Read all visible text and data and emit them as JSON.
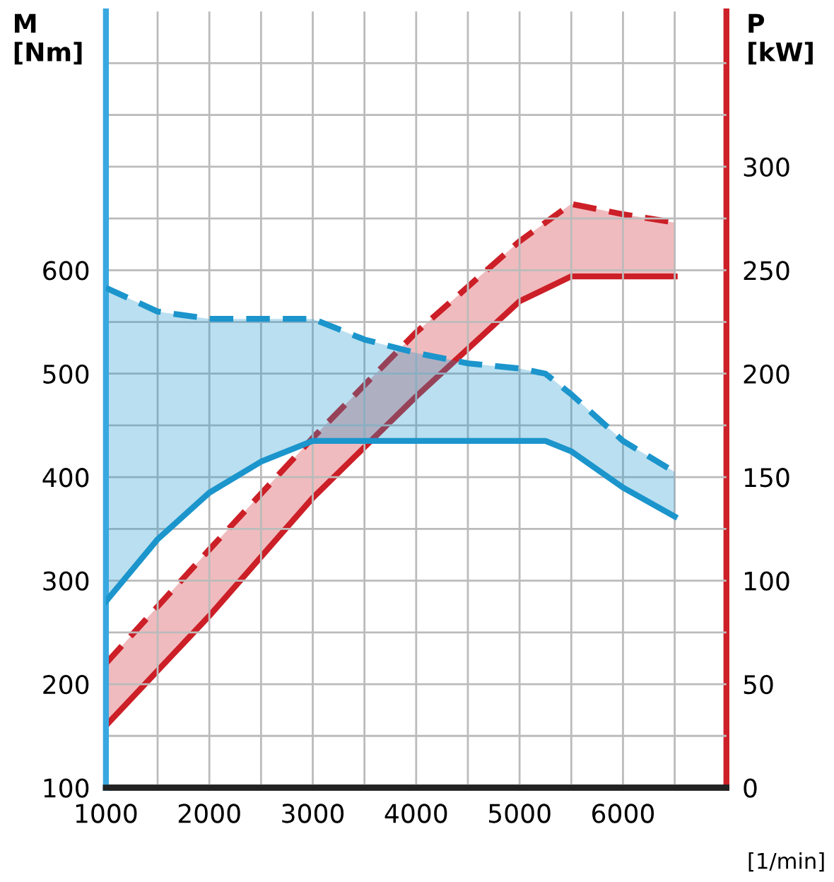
{
  "chart_data": {
    "type": "line",
    "ylabel": "M\n[Nm]",
    "y2label": "P\n[kW]",
    "xlabel": "[1/min]",
    "xlim": [
      1000,
      7000
    ],
    "xticks": [
      1000,
      {
        "value": 1500,
        "label": null
      },
      2000,
      {
        "value": 2500,
        "label": null
      },
      3000,
      {
        "value": 3500,
        "label": null
      },
      4000,
      {
        "value": 4500,
        "label": null
      },
      5000,
      {
        "value": 5500,
        "label": null
      },
      6000,
      {
        "value": 6500,
        "label": null
      }
    ],
    "ylim": [
      100,
      850
    ],
    "yticks": [
      100,
      {
        "value": 150,
        "label": null
      },
      200,
      {
        "value": 250,
        "label": null
      },
      300,
      {
        "value": 350,
        "label": null
      },
      400,
      {
        "value": 450,
        "label": null
      },
      500,
      {
        "value": 550,
        "label": null
      },
      600,
      {
        "value": 650,
        "label": null
      },
      {
        "value": 700,
        "label": null
      },
      {
        "value": 750,
        "label": null
      },
      {
        "value": 800,
        "label": null
      }
    ],
    "y2lim": [
      0,
      375
    ],
    "y2ticks": [
      0,
      50,
      100,
      150,
      200,
      250,
      300
    ],
    "grid": true,
    "series": [
      {
        "color": "#1b95cc",
        "line_style": "solid",
        "x": [
          1000,
          1500,
          2000,
          2500,
          3000,
          3500,
          4000,
          4500,
          5000,
          5250,
          5500,
          6000,
          6500
        ],
        "values": [
          280,
          340,
          385,
          415,
          435,
          435,
          435,
          435,
          435,
          435,
          425,
          390,
          362
        ]
      },
      {
        "color": "#1b95cc",
        "line_style": "dashed",
        "x": [
          1000,
          1500,
          2000,
          2500,
          3000,
          3500,
          4000,
          4500,
          5000,
          5250,
          5500,
          6000,
          6500
        ],
        "values": [
          583,
          560,
          553,
          553,
          553,
          533,
          520,
          510,
          505,
          500,
          480,
          435,
          405
        ],
        "lower": [
          280,
          340,
          385,
          415,
          435,
          435,
          435,
          435,
          435,
          435,
          425,
          390,
          362
        ],
        "upper": [
          583,
          560,
          553,
          553,
          553,
          533,
          520,
          510,
          505,
          500,
          480,
          435,
          405
        ]
      },
      {
        "color": "#cc1f27",
        "line_style": "solid",
        "axis": "y2",
        "x": [
          1000,
          2000,
          3000,
          4000,
          5000,
          5500,
          6000,
          6500
        ],
        "values": [
          30,
          83,
          140,
          189,
          235,
          247,
          247,
          247
        ]
      },
      {
        "color": "#cc1f27",
        "line_style": "dashed",
        "axis": "y2",
        "x": [
          1000,
          2000,
          3000,
          4000,
          5000,
          5500,
          6000,
          6500
        ],
        "values": [
          60,
          115,
          169,
          220,
          264,
          282,
          277,
          273
        ],
        "lower": [
          30,
          83,
          140,
          189,
          235,
          247,
          247,
          247
        ],
        "upper": [
          60,
          115,
          169,
          220,
          264,
          282,
          277,
          273
        ]
      }
    ]
  }
}
